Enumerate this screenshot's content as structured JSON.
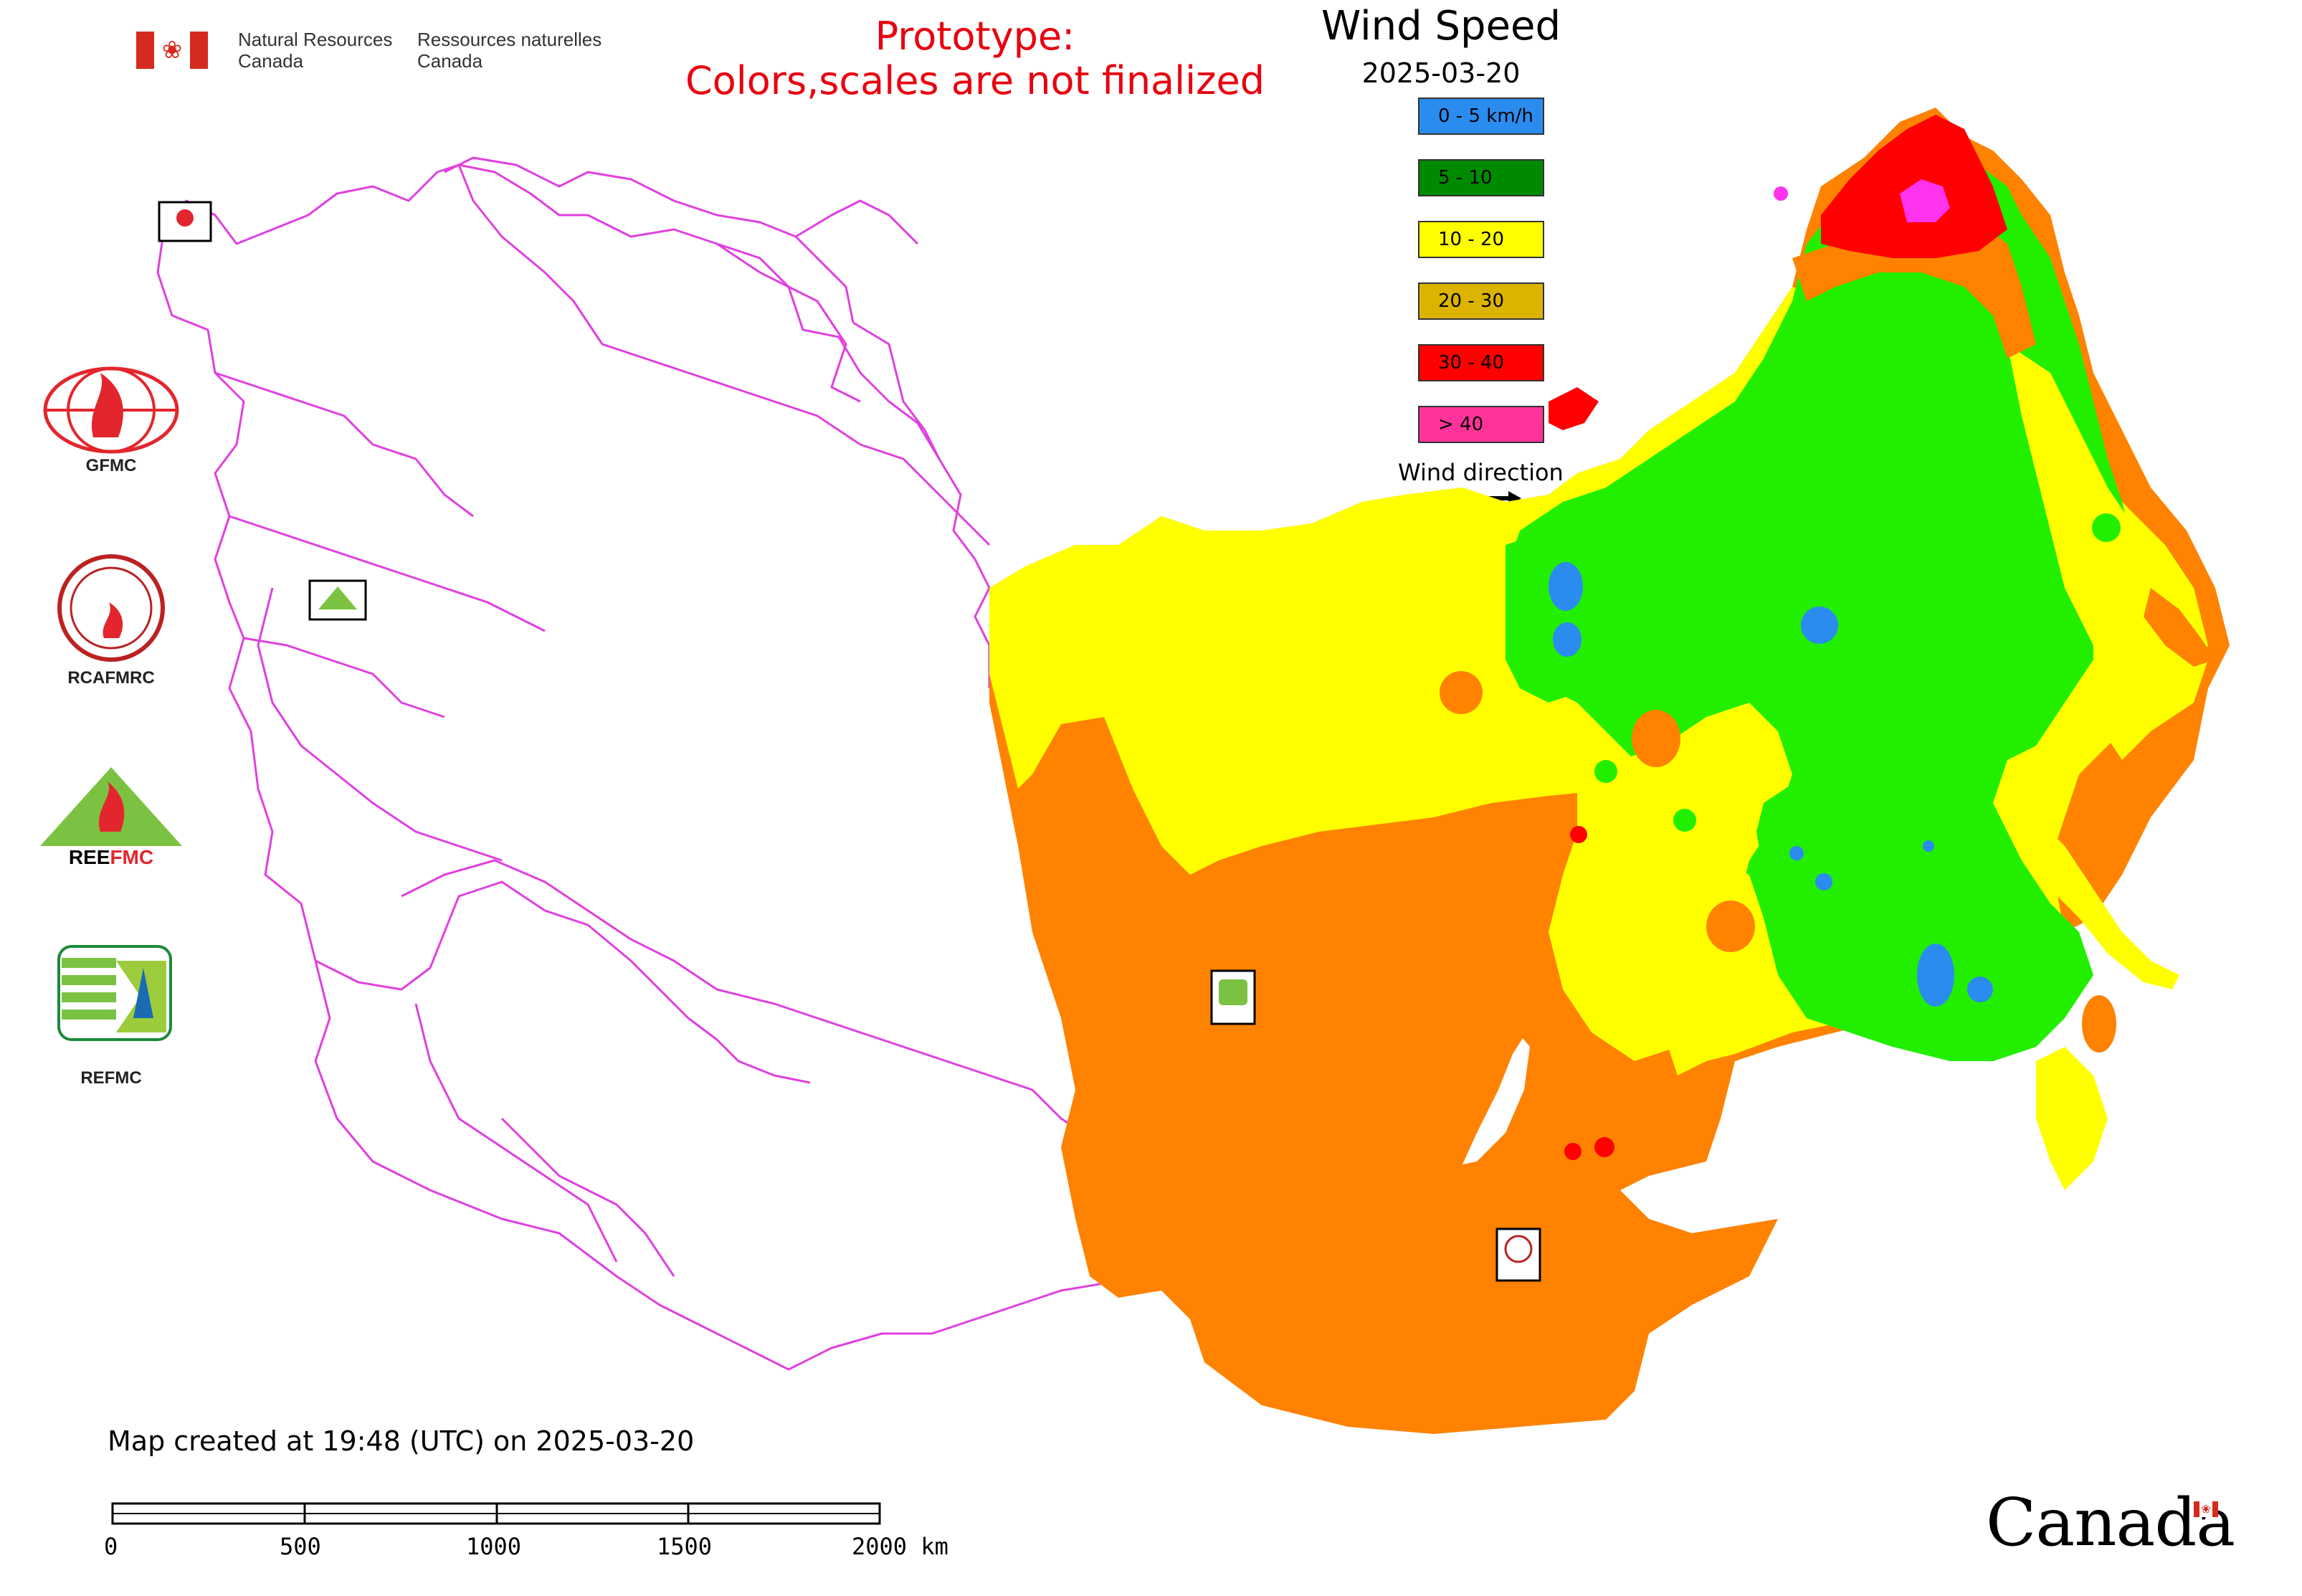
{
  "header": {
    "dept_en_line1": "Natural Resources",
    "dept_en_line2": "Canada",
    "dept_fr_line1": "Ressources naturelles",
    "dept_fr_line2": "Canada",
    "prototype_line1": "Prototype:",
    "prototype_line2": "Colors,scales are not finalized"
  },
  "map_title": "Wind Speed",
  "map_date": "2025-03-20",
  "legend": {
    "items": [
      {
        "label": "0 - 5 km/h",
        "color": "#2b8cf0"
      },
      {
        "label": "5 - 10",
        "color": "#008a00"
      },
      {
        "label": "10 - 20",
        "color": "#ffff00"
      },
      {
        "label": "20 - 30",
        "color": "#dcb400"
      },
      {
        "label": "30 - 40",
        "color": "#ff0000"
      },
      {
        "label": "> 40",
        "color": "#ff3399"
      }
    ],
    "wind_direction_label": "Wind direction"
  },
  "map_colors": {
    "calm": "#2b8cf0",
    "low": "#22ee00",
    "moderate": "#ffff00",
    "strong": "#ff8200",
    "very_strong": "#ff0000",
    "extreme": "#ff33ee",
    "boundary": "#e040e0"
  },
  "logos": {
    "gfmc": "GFMC",
    "rcafmrc": "RCAFMRC",
    "reefmc": "REEFMC",
    "refmc": "REFMC"
  },
  "footer": {
    "created_text": "Map created at 19:48 (UTC) on 2025-03-20",
    "scale_ticks": [
      "0",
      "500",
      "1000",
      "1500",
      "2000 km"
    ],
    "wordmark": "Canada"
  }
}
